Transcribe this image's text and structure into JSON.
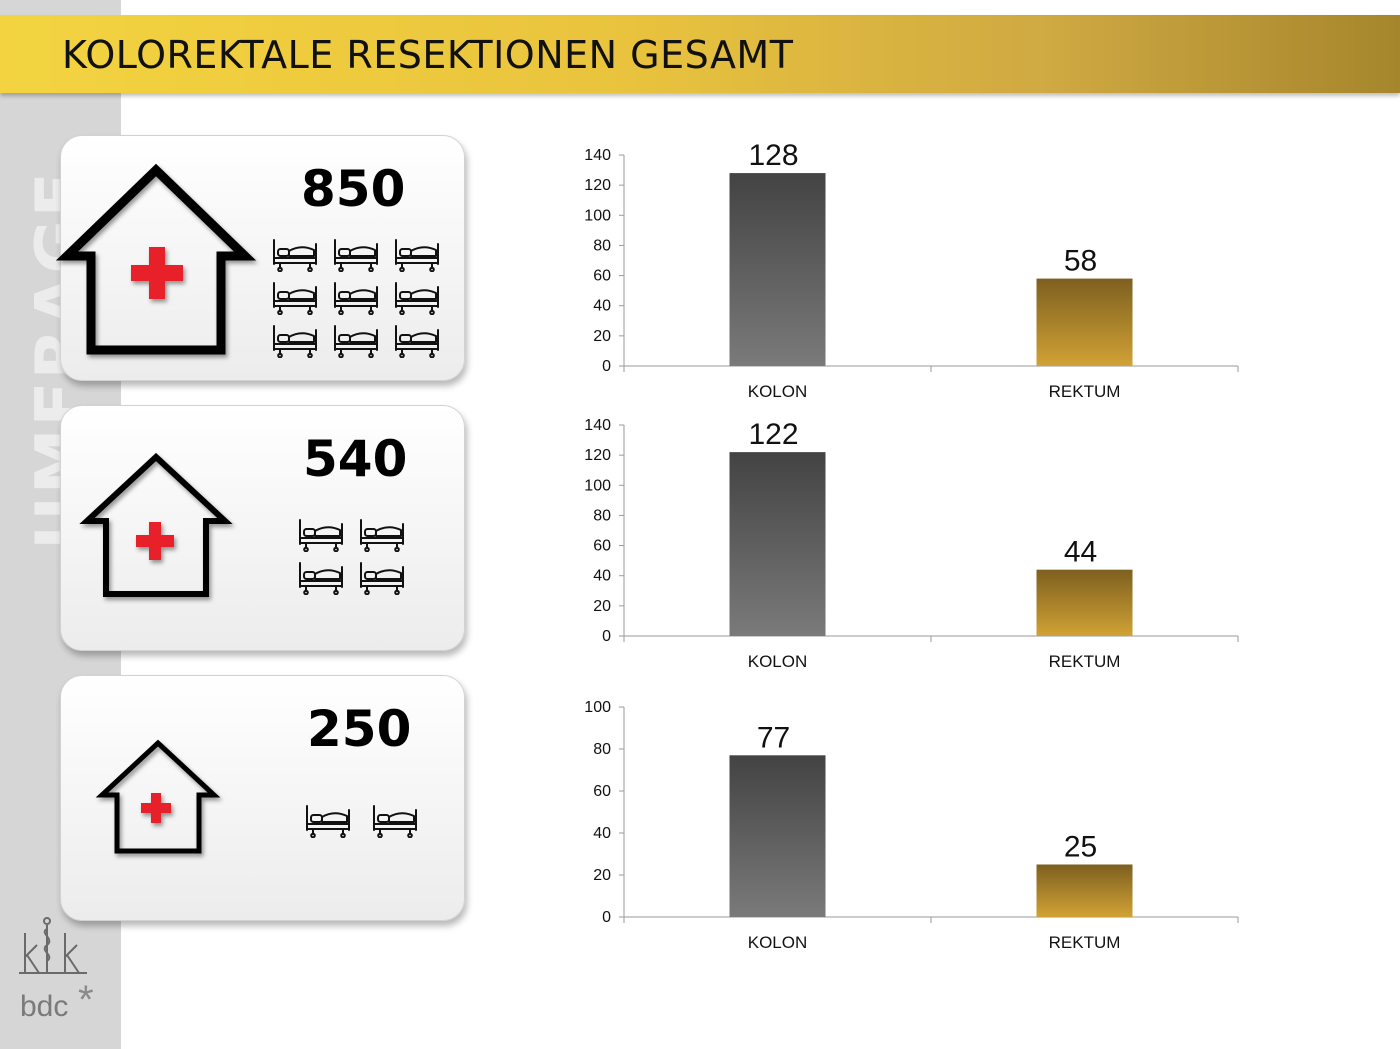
{
  "header": {
    "title": "KOLOREKTALE RESEKTIONEN GESAMT"
  },
  "sidebar": {
    "watermark": "UMFRAGE"
  },
  "cards": [
    {
      "count": "850",
      "beds": 9,
      "icon": "hospital-house-icon"
    },
    {
      "count": "540",
      "beds": 4,
      "icon": "hospital-house-icon"
    },
    {
      "count": "250",
      "beds": 2,
      "icon": "hospital-house-icon"
    }
  ],
  "colors": {
    "header_gold": "#e9c33d",
    "kolon_bar": "#555555",
    "rektum_bar": "#b8902a",
    "cross": "#e8202a"
  },
  "logos": {
    "klk": "klk",
    "bdc": "bdc",
    "bdc_star": "*"
  },
  "chart_data": [
    {
      "type": "bar",
      "categories": [
        "KOLON",
        "REKTUM"
      ],
      "values": [
        128,
        58
      ],
      "ylim": [
        0,
        140
      ],
      "yticks": [
        0,
        20,
        40,
        60,
        80,
        100,
        120,
        140
      ]
    },
    {
      "type": "bar",
      "categories": [
        "KOLON",
        "REKTUM"
      ],
      "values": [
        122,
        44
      ],
      "ylim": [
        0,
        140
      ],
      "yticks": [
        0,
        20,
        40,
        60,
        80,
        100,
        120,
        140
      ]
    },
    {
      "type": "bar",
      "categories": [
        "KOLON",
        "REKTUM"
      ],
      "values": [
        77,
        25
      ],
      "ylim": [
        0,
        100
      ],
      "yticks": [
        0,
        20,
        40,
        60,
        80,
        100
      ]
    }
  ]
}
